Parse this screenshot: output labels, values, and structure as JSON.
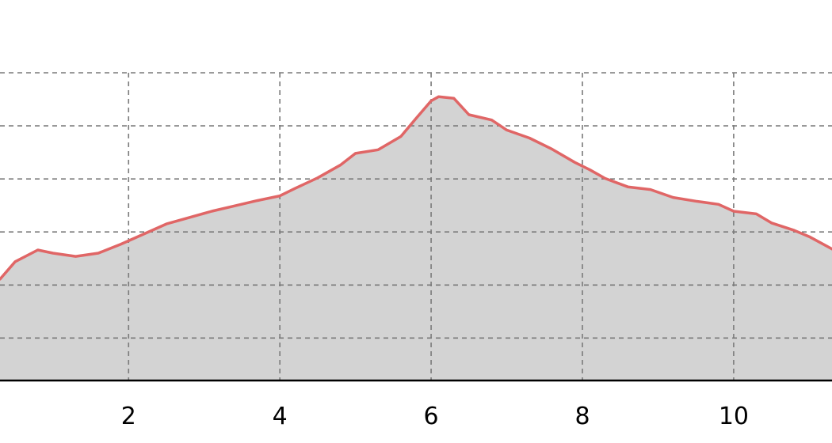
{
  "chart_data": {
    "type": "area",
    "title": "",
    "xlabel": "",
    "ylabel": "",
    "xlim": [
      0.3,
      11.3
    ],
    "ylim": [
      0,
      5.8
    ],
    "x_ticks": [
      2,
      4,
      6,
      8,
      10
    ],
    "x_tick_labels": [
      "2",
      "4",
      "6",
      "8",
      "10"
    ],
    "y_gridlines": [
      0.8,
      1.8,
      2.8,
      3.8,
      4.8,
      5.8
    ],
    "grid": true,
    "legend": "none",
    "colors": {
      "line": "#e06666",
      "fill": "#d3d3d3",
      "grid": "#7a7a7a",
      "axis": "#000000"
    },
    "series": [
      {
        "x": [
          0.3,
          0.5,
          0.8,
          1.0,
          1.3,
          1.6,
          1.9,
          2.2,
          2.5,
          2.8,
          3.1,
          3.4,
          3.7,
          4.0,
          4.2,
          4.5,
          4.8,
          5.0,
          5.3,
          5.6,
          5.8,
          6.0,
          6.1,
          6.3,
          6.5,
          6.8,
          7.0,
          7.3,
          7.6,
          7.9,
          8.1,
          8.3,
          8.6,
          8.9,
          9.2,
          9.5,
          9.8,
          10.0,
          10.3,
          10.5,
          10.8,
          11.0,
          11.3
        ],
        "y": [
          1.91,
          2.24,
          2.46,
          2.4,
          2.34,
          2.4,
          2.57,
          2.76,
          2.95,
          3.07,
          3.19,
          3.29,
          3.39,
          3.48,
          3.62,
          3.82,
          4.06,
          4.28,
          4.35,
          4.6,
          4.94,
          5.27,
          5.35,
          5.32,
          5.01,
          4.91,
          4.72,
          4.57,
          4.36,
          4.11,
          3.97,
          3.81,
          3.65,
          3.6,
          3.45,
          3.38,
          3.32,
          3.19,
          3.14,
          2.97,
          2.83,
          2.71,
          2.48
        ]
      }
    ]
  }
}
